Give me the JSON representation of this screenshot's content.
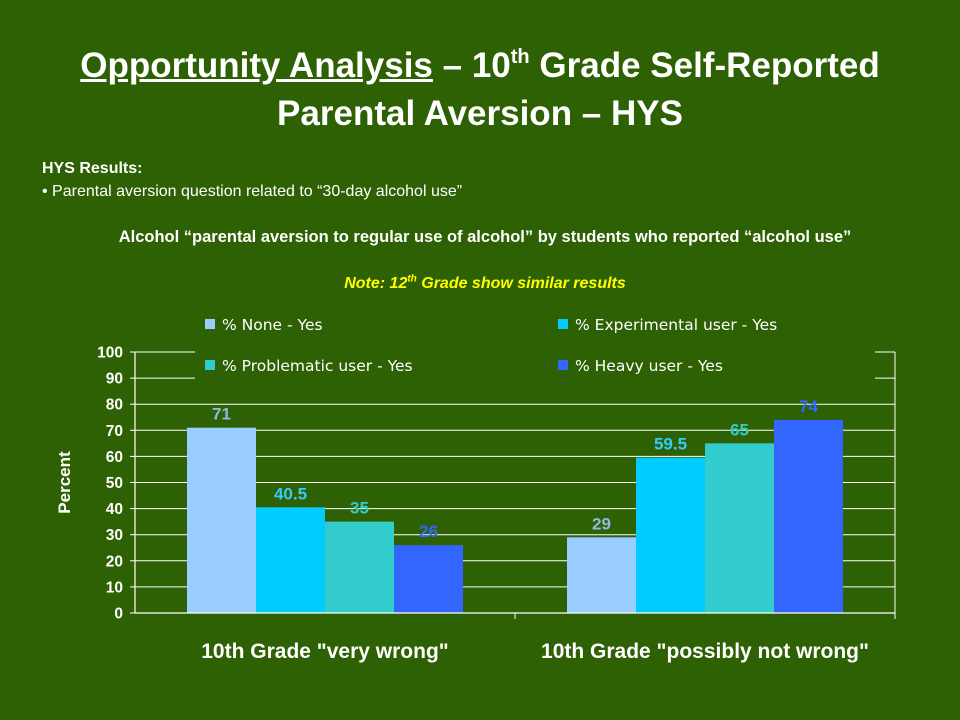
{
  "slide": {
    "title_part1": "Opportunity Analysis",
    "title_part2": " – 10",
    "title_sup": "th",
    "title_part3": " Grade Self-Reported Parental Aversion – HYS",
    "hys_heading": "HYS Results:",
    "hys_bullet": "• Parental aversion question related to “30-day alcohol use”",
    "chart_title": "Alcohol “parental aversion to regular use of alcohol” by students who reported “alcohol use”",
    "note_part1": "Note: 12",
    "note_sup": "th",
    "note_part2": " Grade show similar results"
  },
  "colors": {
    "background": "#2e6104",
    "note": "#ffff00"
  },
  "chart_data": {
    "type": "bar",
    "categories": [
      "10th Grade \"very wrong\"",
      "10th Grade \"possibly not wrong\""
    ],
    "series": [
      {
        "name": "% None - Yes",
        "values": [
          71,
          29
        ],
        "color": "#99ccff",
        "label_color": "#8fb8e6",
        "labels": [
          "71",
          "29"
        ]
      },
      {
        "name": "% Experimental user - Yes",
        "values": [
          40.5,
          59.5
        ],
        "color": "#00ccff",
        "label_color": "#33ccff",
        "labels": [
          "40.5",
          "59.5"
        ]
      },
      {
        "name": "% Problematic user - Yes",
        "values": [
          35,
          65
        ],
        "color": "#33cccc",
        "label_color": "#33cccc",
        "labels": [
          "35",
          "65"
        ]
      },
      {
        "name": "% Heavy user - Yes",
        "values": [
          26,
          74
        ],
        "color": "#3366ff",
        "label_color": "#3366ff",
        "labels": [
          "26",
          "74"
        ]
      }
    ],
    "ylabel": "Percent",
    "xlabel": "",
    "ylim": [
      0,
      100
    ],
    "yticks": [
      "0",
      "10",
      "20",
      "30",
      "40",
      "50",
      "60",
      "70",
      "80",
      "90",
      "100"
    ],
    "grid": true,
    "legend_position": "top"
  }
}
